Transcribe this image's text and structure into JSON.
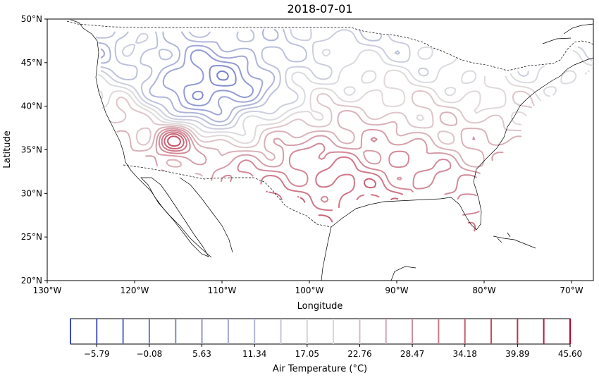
{
  "chart_data": {
    "type": "contour-map",
    "title": "2018-07-01",
    "xlabel": "Longitude",
    "ylabel": "Latitude",
    "xlim": [
      -130,
      -67.5
    ],
    "ylim": [
      20,
      50
    ],
    "xticks": [
      {
        "value": -130,
        "label": "130°W"
      },
      {
        "value": -120,
        "label": "120°W"
      },
      {
        "value": -110,
        "label": "110°W"
      },
      {
        "value": -100,
        "label": "100°W"
      },
      {
        "value": -90,
        "label": "90°W"
      },
      {
        "value": -80,
        "label": "80°W"
      },
      {
        "value": -70,
        "label": "70°W"
      }
    ],
    "yticks": [
      {
        "value": 20,
        "label": "20°N"
      },
      {
        "value": 25,
        "label": "25°N"
      },
      {
        "value": 30,
        "label": "30°N"
      },
      {
        "value": 35,
        "label": "35°N"
      },
      {
        "value": 40,
        "label": "40°N"
      },
      {
        "value": 45,
        "label": "45°N"
      },
      {
        "value": 50,
        "label": "50°N"
      }
    ],
    "colorbar": {
      "label": "Air Temperature (°C)",
      "min": -8.64,
      "max": 45.6,
      "levels": [
        -8.64,
        -5.79,
        -2.93,
        -0.08,
        2.78,
        5.63,
        8.49,
        11.34,
        14.2,
        17.05,
        19.9,
        22.76,
        25.61,
        28.47,
        31.32,
        34.18,
        37.03,
        39.89,
        42.74,
        45.6
      ],
      "tick_labels": [
        "−5.79",
        "−0.08",
        "5.63",
        "11.34",
        "17.05",
        "22.76",
        "28.47",
        "34.18",
        "39.89",
        "45.60"
      ],
      "tick_values": [
        -5.79,
        -0.08,
        5.63,
        11.34,
        17.05,
        22.76,
        28.47,
        34.18,
        39.89,
        45.6
      ]
    },
    "colors": {
      "cold": "#3b4cc0",
      "mid": "#dddddd",
      "hot": "#b40426"
    }
  }
}
